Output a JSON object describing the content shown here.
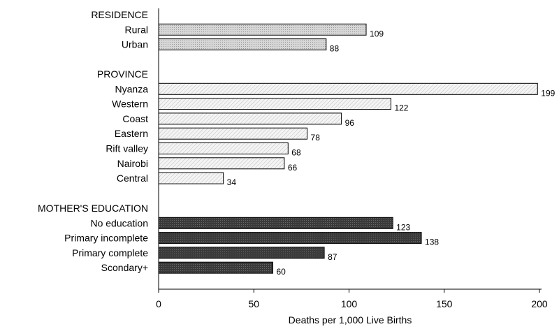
{
  "chart_data": {
    "type": "bar",
    "orientation": "horizontal",
    "xlabel": "Deaths per 1,000 Live Births",
    "xlim": [
      0,
      200
    ],
    "xticks": [
      0,
      50,
      100,
      150,
      200
    ],
    "grid": false,
    "groups": [
      {
        "name": "RESIDENCE",
        "color": "#c8c8c8",
        "categories": [
          "Rural",
          "Urban"
        ],
        "values": [
          109,
          88
        ]
      },
      {
        "name": "PROVINCE",
        "color": "#ededed",
        "categories": [
          "Nyanza",
          "Western",
          "Coast",
          "Eastern",
          "Rift valley",
          "Nairobi",
          "Central"
        ],
        "values": [
          199,
          122,
          96,
          78,
          68,
          66,
          34
        ]
      },
      {
        "name": "MOTHER'S EDUCATION",
        "color": "#3c3c3c",
        "categories": [
          "No education",
          "Primary incomplete",
          "Primary complete",
          "Scondary+"
        ],
        "values": [
          123,
          138,
          87,
          60
        ]
      }
    ]
  }
}
